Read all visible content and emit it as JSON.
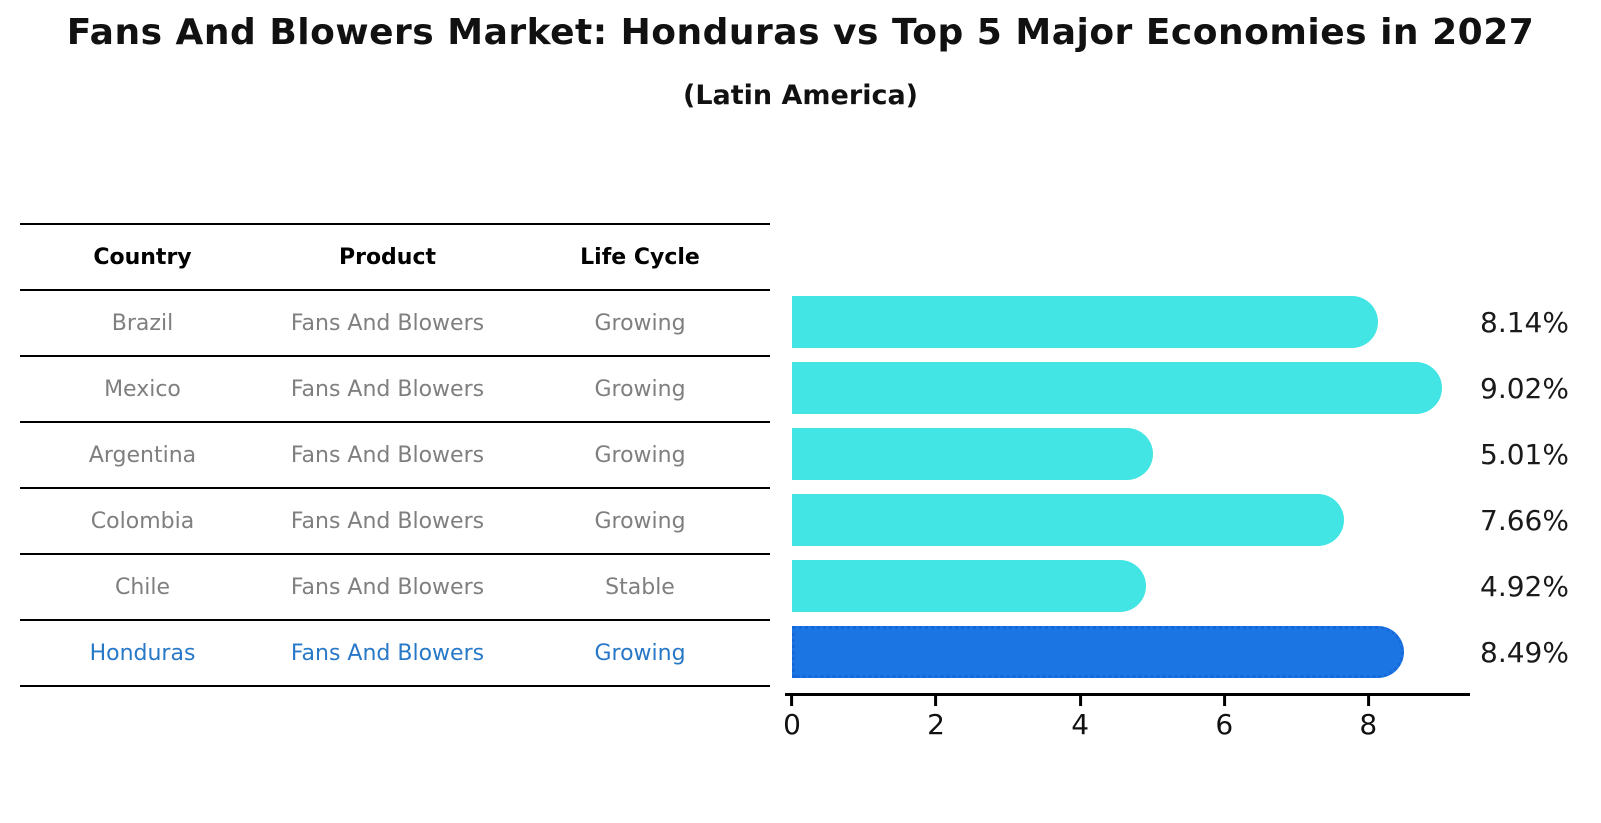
{
  "title": "Fans And Blowers Market: Honduras vs Top 5 Major Economies in 2027",
  "subtitle": "(Latin America)",
  "table": {
    "headers": [
      "Country",
      "Product",
      "Life Cycle"
    ],
    "rows": [
      {
        "country": "Brazil",
        "product": "Fans And Blowers",
        "life_cycle": "Growing",
        "highlighted": false
      },
      {
        "country": "Mexico",
        "product": "Fans And Blowers",
        "life_cycle": "Growing",
        "highlighted": false
      },
      {
        "country": "Argentina",
        "product": "Fans And Blowers",
        "life_cycle": "Growing",
        "highlighted": false
      },
      {
        "country": "Colombia",
        "product": "Fans And Blowers",
        "life_cycle": "Growing",
        "highlighted": false
      },
      {
        "country": "Chile",
        "product": "Fans And Blowers",
        "life_cycle": "Stable",
        "highlighted": false
      },
      {
        "country": "Honduras",
        "product": "Fans And Blowers",
        "life_cycle": "Growing",
        "highlighted": true
      }
    ]
  },
  "chart_data": {
    "type": "bar",
    "orientation": "horizontal",
    "title": "Fans And Blowers Market: Honduras vs Top 5 Major Economies in 2027",
    "subtitle": "(Latin America)",
    "categories": [
      "Brazil",
      "Mexico",
      "Argentina",
      "Colombia",
      "Chile",
      "Honduras"
    ],
    "values": [
      8.14,
      9.02,
      5.01,
      7.66,
      4.92,
      8.49
    ],
    "value_labels": [
      "8.14%",
      "9.02%",
      "5.01%",
      "7.66%",
      "4.92%",
      "8.49%"
    ],
    "highlight_index": 5,
    "xlim": [
      0,
      9.3
    ],
    "xticks": [
      0,
      2,
      4,
      6,
      8
    ],
    "grid": false,
    "legend": "none",
    "xlabel": "",
    "ylabel": ""
  },
  "colors": {
    "bar_color": "#42e4e4",
    "bar_highlight": "#1b76e3",
    "bar_highlight_border": "#1668d8",
    "highlight_text": "#2878c8",
    "table_text": "#7f7f7f",
    "axis_text": "#111111",
    "line_color": "#000000"
  }
}
